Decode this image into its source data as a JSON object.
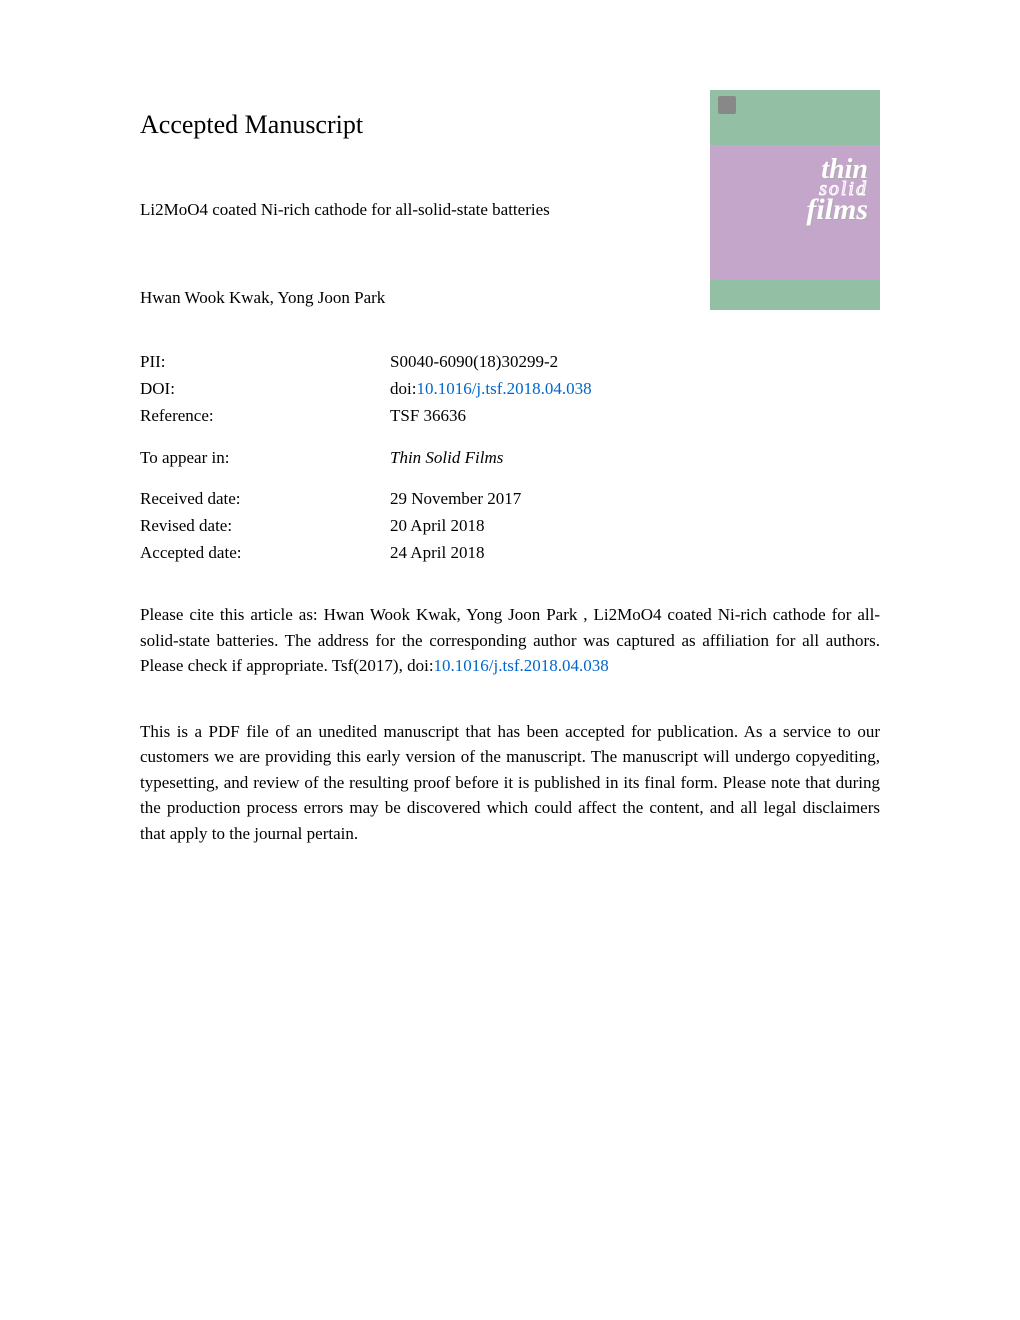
{
  "heading": "Accepted Manuscript",
  "title": "Li2MoO4 coated Ni-rich cathode for all-solid-state batteries",
  "authors": "Hwan Wook Kwak, Yong Joon Park",
  "metadata": {
    "pii_label": "PII:",
    "pii_value": "S0040-6090(18)30299-2",
    "doi_label": "DOI:",
    "doi_prefix": "doi:",
    "doi_link": "10.1016/j.tsf.2018.04.038",
    "reference_label": "Reference:",
    "reference_value": "TSF 36636",
    "appear_label": "To appear in:",
    "appear_value": "Thin Solid Films",
    "received_label": "Received date:",
    "received_value": "29 November 2017",
    "revised_label": "Revised date:",
    "revised_value": "20 April 2018",
    "accepted_label": "Accepted date:",
    "accepted_value": "24 April 2018"
  },
  "citation": {
    "text_before": "Please cite this article as: Hwan Wook Kwak, Yong Joon Park , Li2MoO4 coated Ni-rich cathode for all-solid-state batteries. The address for the corresponding author was captured as affiliation for all authors. Please check if appropriate. Tsf(2017), doi:",
    "link": "10.1016/j.tsf.2018.04.038"
  },
  "disclaimer": "This is a PDF file of an unedited manuscript that has been accepted for publication. As a service to our customers we are providing this early version of the manuscript. The manuscript will undergo copyediting, typesetting, and review of the resulting proof before it is published in its final form. Please note that during the production process errors may be discovered which could affect the content, and all legal disclaimers that apply to the journal pertain.",
  "cover": {
    "top_color": "#93bfa4",
    "middle_color": "#c5a6cb",
    "bottom_color": "#93bfa4",
    "text_thin": "thin",
    "text_solid": "solid",
    "text_films": "films"
  },
  "colors": {
    "link": "#0066cc",
    "text": "#000000",
    "background": "#ffffff"
  }
}
